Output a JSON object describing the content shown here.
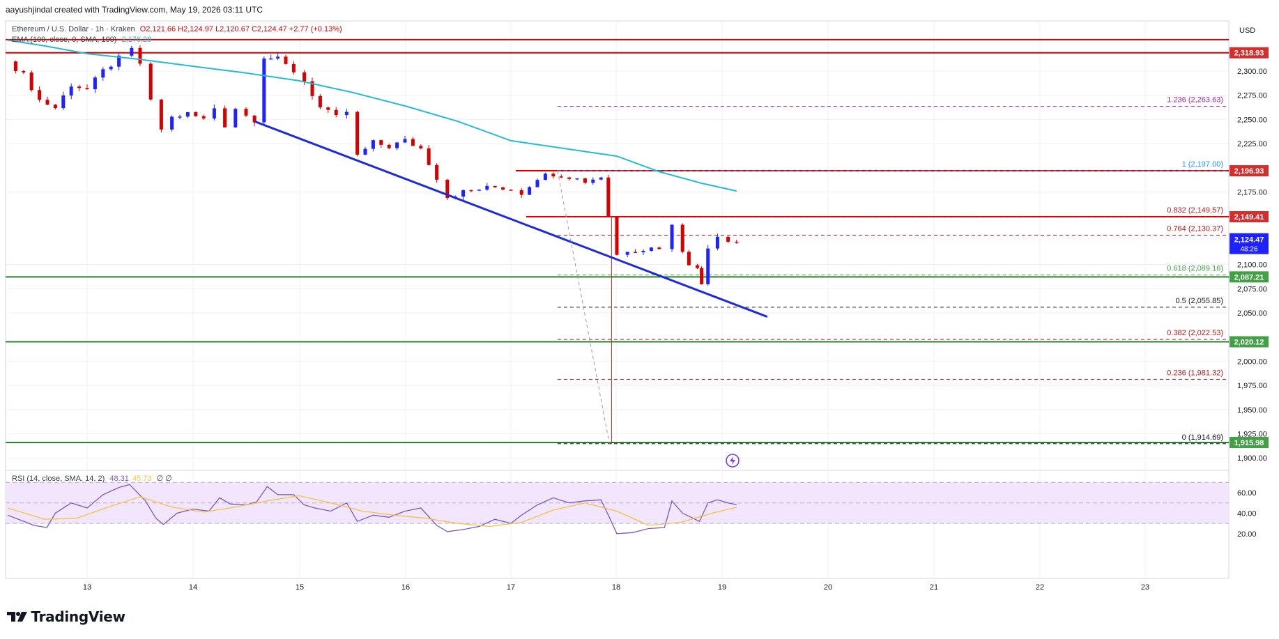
{
  "header": {
    "created_by": "aayushjindal created with TradingView.com, May 19, 2026 03:11 UTC"
  },
  "legend": {
    "symbol": "Ethereum / U.S. Dollar · 1h · Kraken",
    "ohlc": "O2,121.66  H2,124.97  L2,120.67  C2,124.47  +2.77 (+0.13%)",
    "ema_label": "EMA (100, close, 0, SMA, 100)",
    "ema_value": "2,176.28"
  },
  "rsi_legend": {
    "label": "RSI (14, close, SMA, 14, 2)",
    "value": "48.31",
    "ma_value": "45.73",
    "extra": "∅  ∅"
  },
  "price_axis": {
    "currency": "USD",
    "ticks": [
      "2,300.00",
      "2,275.00",
      "2,250.00",
      "2,225.00",
      "2,175.00",
      "2,100.00",
      "2,075.00",
      "2,050.00",
      "2,000.00",
      "1,975.00",
      "1,950.00",
      "1,925.00",
      "1,900.00"
    ]
  },
  "rsi_axis": {
    "ticks": [
      "60.00",
      "40.00",
      "20.00"
    ]
  },
  "time_axis": {
    "ticks": [
      "13",
      "14",
      "15",
      "16",
      "17",
      "18",
      "19",
      "20",
      "21",
      "22",
      "23"
    ]
  },
  "price_tags": [
    {
      "text": "2,318.93",
      "color": "#d32f2f"
    },
    {
      "text": "2,196.93",
      "color": "#d32f2f"
    },
    {
      "text": "2,149.41",
      "color": "#d32f2f"
    },
    {
      "text": "2,087.21",
      "color": "#43a047"
    },
    {
      "text": "2,020.12",
      "color": "#43a047"
    },
    {
      "text": "1,915.98",
      "color": "#43a047"
    }
  ],
  "current_price": {
    "text": "2,124.47",
    "countdown": "48:26",
    "color": "#1e22ff"
  },
  "fib_levels": [
    {
      "label": "1.236 (2,263.63)",
      "value": 2263.63,
      "color": "#9c27b0"
    },
    {
      "label": "1 (2,197.00)",
      "value": 2197.0,
      "color": "#2196f3"
    },
    {
      "label": "0.832 (2,149.57)",
      "value": 2149.57,
      "color": "#b71c1c"
    },
    {
      "label": "0.764 (2,130.37)",
      "value": 2130.37,
      "color": "#b71c1c"
    },
    {
      "label": "0.618 (2,089.16)",
      "value": 2089.16,
      "color": "#43a047"
    },
    {
      "label": "0.5 (2,055.85)",
      "value": 2055.85,
      "color": "#131722"
    },
    {
      "label": "0.382 (2,022.53)",
      "value": 2022.53,
      "color": "#b71c1c"
    },
    {
      "label": "0.236 (1,981.32)",
      "value": 1981.32,
      "color": "#b71c1c"
    },
    {
      "label": "0 (1,914.69)",
      "value": 1914.69,
      "color": "#131722"
    }
  ],
  "colors": {
    "up": "#1e22ff",
    "down": "#d50000",
    "ema": "#26bcd0",
    "trend": "#1e2bd8",
    "resistance": "#d50000",
    "support": "#2e7d32",
    "rsi": "#7e57c2",
    "rsi_ma": "#f5c242",
    "rsi_band": "#f1e6fb",
    "grid": "#eef0f3"
  },
  "chart_data": {
    "type": "candlestick",
    "x_unit": "day of month (May 2026), hourly candles",
    "xlim": [
      12.25,
      23.85
    ],
    "ylim": [
      1888,
      2345
    ],
    "horizontal_lines": {
      "resistance": [
        2332.5,
        2318.93,
        2196.93,
        2149.41
      ],
      "support": [
        2087.21,
        2020.12,
        1915.98
      ]
    },
    "trendline": {
      "from": [
        14.58,
        2248
      ],
      "to": [
        19.42,
        2046
      ]
    },
    "dashed_move": {
      "from": [
        17.44,
        2197
      ],
      "to": [
        17.93,
        1914.69
      ]
    },
    "ohlc_path": [
      [
        12.25,
        2310
      ],
      [
        12.4,
        2296
      ],
      [
        12.55,
        2270
      ],
      [
        12.7,
        2262
      ],
      [
        12.85,
        2286
      ],
      [
        13.0,
        2281
      ],
      [
        13.15,
        2300
      ],
      [
        13.3,
        2313
      ],
      [
        13.42,
        2322
      ],
      [
        13.5,
        2308
      ],
      [
        13.6,
        2268
      ],
      [
        13.7,
        2240
      ],
      [
        13.8,
        2252
      ],
      [
        13.95,
        2256
      ],
      [
        14.1,
        2250
      ],
      [
        14.2,
        2262
      ],
      [
        14.3,
        2244
      ],
      [
        14.4,
        2262
      ],
      [
        14.5,
        2254
      ],
      [
        14.58,
        2250
      ],
      [
        14.67,
        2315
      ],
      [
        14.8,
        2312
      ],
      [
        14.95,
        2300
      ],
      [
        15.05,
        2290
      ],
      [
        15.2,
        2262
      ],
      [
        15.35,
        2252
      ],
      [
        15.45,
        2258
      ],
      [
        15.55,
        2212
      ],
      [
        15.7,
        2226
      ],
      [
        15.85,
        2222
      ],
      [
        16.0,
        2228
      ],
      [
        16.15,
        2220
      ],
      [
        16.3,
        2190
      ],
      [
        16.4,
        2170
      ],
      [
        16.55,
        2175
      ],
      [
        16.7,
        2178
      ],
      [
        16.85,
        2180
      ],
      [
        17.0,
        2178
      ],
      [
        17.1,
        2174
      ],
      [
        17.25,
        2190
      ],
      [
        17.4,
        2194
      ],
      [
        17.55,
        2191
      ],
      [
        17.7,
        2186
      ],
      [
        17.85,
        2191
      ],
      [
        17.92,
        2150
      ],
      [
        18.0,
        2110
      ],
      [
        18.1,
        2115
      ],
      [
        18.25,
        2116
      ],
      [
        18.4,
        2118
      ],
      [
        18.52,
        2140
      ],
      [
        18.62,
        2115
      ],
      [
        18.68,
        2102
      ],
      [
        18.76,
        2095
      ],
      [
        18.8,
        2080
      ],
      [
        18.86,
        2119
      ],
      [
        18.95,
        2130
      ],
      [
        19.05,
        2126
      ],
      [
        19.13,
        2124
      ]
    ],
    "ema": [
      [
        12.25,
        2332
      ],
      [
        12.6,
        2326
      ],
      [
        13.0,
        2318
      ],
      [
        13.5,
        2312
      ],
      [
        14.0,
        2305
      ],
      [
        14.5,
        2298
      ],
      [
        15.0,
        2290
      ],
      [
        15.5,
        2278
      ],
      [
        16.0,
        2264
      ],
      [
        16.5,
        2248
      ],
      [
        17.0,
        2228
      ],
      [
        17.5,
        2220
      ],
      [
        18.0,
        2212
      ],
      [
        18.4,
        2196
      ],
      [
        18.8,
        2184
      ],
      [
        19.13,
        2176
      ]
    ],
    "rsi": [
      [
        12.25,
        38
      ],
      [
        12.5,
        28
      ],
      [
        12.62,
        26
      ],
      [
        12.7,
        40
      ],
      [
        12.85,
        50
      ],
      [
        13.0,
        45
      ],
      [
        13.15,
        58
      ],
      [
        13.3,
        65
      ],
      [
        13.4,
        68
      ],
      [
        13.55,
        52
      ],
      [
        13.65,
        35
      ],
      [
        13.72,
        29
      ],
      [
        13.85,
        40
      ],
      [
        14.0,
        44
      ],
      [
        14.15,
        42
      ],
      [
        14.25,
        55
      ],
      [
        14.35,
        49
      ],
      [
        14.5,
        48
      ],
      [
        14.6,
        51
      ],
      [
        14.7,
        66
      ],
      [
        14.8,
        58
      ],
      [
        14.95,
        58
      ],
      [
        15.05,
        48
      ],
      [
        15.15,
        45
      ],
      [
        15.3,
        42
      ],
      [
        15.45,
        50
      ],
      [
        15.55,
        32
      ],
      [
        15.7,
        38
      ],
      [
        15.85,
        36
      ],
      [
        16.0,
        42
      ],
      [
        16.15,
        45
      ],
      [
        16.3,
        28
      ],
      [
        16.4,
        22
      ],
      [
        16.55,
        24
      ],
      [
        16.7,
        27
      ],
      [
        16.85,
        34
      ],
      [
        17.0,
        30
      ],
      [
        17.1,
        38
      ],
      [
        17.25,
        48
      ],
      [
        17.4,
        55
      ],
      [
        17.55,
        50
      ],
      [
        17.7,
        52
      ],
      [
        17.85,
        53
      ],
      [
        17.92,
        38
      ],
      [
        18.0,
        20
      ],
      [
        18.15,
        21
      ],
      [
        18.3,
        25
      ],
      [
        18.45,
        26
      ],
      [
        18.52,
        52
      ],
      [
        18.62,
        40
      ],
      [
        18.7,
        36
      ],
      [
        18.78,
        32
      ],
      [
        18.86,
        50
      ],
      [
        18.95,
        53
      ],
      [
        19.05,
        50
      ],
      [
        19.13,
        48.31
      ]
    ],
    "rsi_ma": [
      [
        12.25,
        45
      ],
      [
        12.6,
        34
      ],
      [
        12.9,
        35
      ],
      [
        13.2,
        46
      ],
      [
        13.5,
        56
      ],
      [
        13.8,
        46
      ],
      [
        14.1,
        41
      ],
      [
        14.4,
        46
      ],
      [
        14.7,
        52
      ],
      [
        15.0,
        57
      ],
      [
        15.3,
        50
      ],
      [
        15.6,
        42
      ],
      [
        15.9,
        38
      ],
      [
        16.2,
        35
      ],
      [
        16.5,
        30
      ],
      [
        16.8,
        27
      ],
      [
        17.1,
        31
      ],
      [
        17.4,
        43
      ],
      [
        17.7,
        50
      ],
      [
        18.0,
        42
      ],
      [
        18.3,
        28
      ],
      [
        18.6,
        31
      ],
      [
        18.9,
        40
      ],
      [
        19.13,
        45.73
      ]
    ],
    "rsi_ylim": [
      14,
      84
    ],
    "rsi_bands": [
      70,
      50,
      30
    ]
  }
}
